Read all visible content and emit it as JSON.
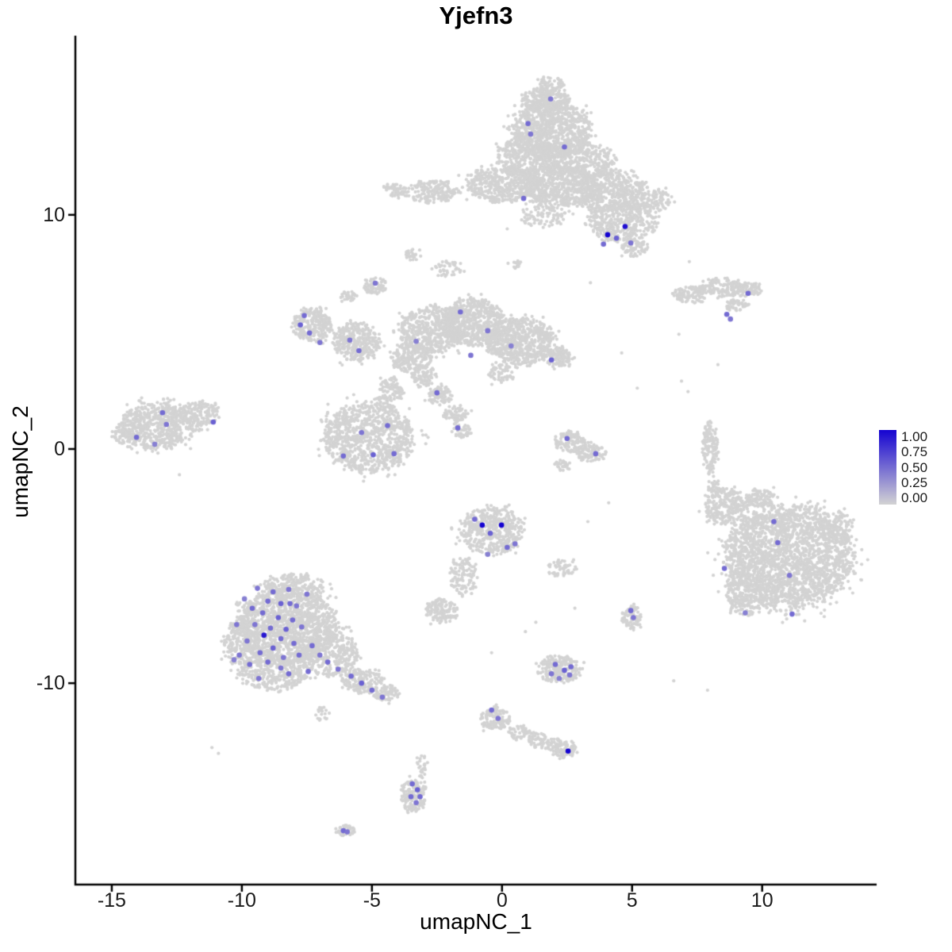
{
  "chart_data": {
    "type": "scatter",
    "title": "Yjefn3",
    "xlabel": "umapNC_1",
    "ylabel": "umapNC_2",
    "x_ticks": [
      -15,
      -10,
      -5,
      0,
      5,
      10
    ],
    "y_ticks": [
      -10,
      0,
      10
    ],
    "xlim": [
      -16.4,
      14.4
    ],
    "ylim": [
      -18.6,
      17.65
    ],
    "grid": false,
    "legend": {
      "position": "right",
      "labels": [
        "1.00",
        "0.75",
        "0.50",
        "0.25",
        "0.00"
      ],
      "min": 0,
      "max": 1
    },
    "colors": {
      "background_cell": "#d3d3d3",
      "expression_low": "#d3d3d3",
      "expression_high": "#1503d1",
      "axis": "#000000",
      "text": "#1a1a1a"
    },
    "background_clusters_format": "[center_x, center_y, radius_x, radius_y, n_cells]",
    "background_clusters": [
      [
        1.6,
        14.9,
        0.9,
        0.55,
        260
      ],
      [
        1.9,
        15.6,
        0.45,
        0.3,
        60
      ],
      [
        1.9,
        13.6,
        1.5,
        1.2,
        900
      ],
      [
        0.9,
        12.5,
        1.1,
        0.8,
        350
      ],
      [
        2.9,
        12.3,
        1.4,
        0.9,
        450
      ],
      [
        0.1,
        11.3,
        1.5,
        0.75,
        450
      ],
      [
        2.2,
        11.2,
        1.5,
        0.85,
        550
      ],
      [
        4.2,
        11.0,
        1.4,
        0.9,
        500
      ],
      [
        -2.7,
        11.0,
        1.0,
        0.5,
        180
      ],
      [
        -4.1,
        11.1,
        0.45,
        0.3,
        50
      ],
      [
        4.6,
        9.7,
        1.3,
        0.85,
        420
      ],
      [
        5.1,
        8.6,
        0.5,
        0.4,
        70
      ],
      [
        1.6,
        10.0,
        1.0,
        0.5,
        90
      ],
      [
        5.9,
        10.6,
        0.6,
        0.5,
        90
      ],
      [
        7.3,
        6.6,
        0.7,
        0.35,
        110
      ],
      [
        8.4,
        6.9,
        0.8,
        0.4,
        140
      ],
      [
        9.4,
        6.8,
        0.6,
        0.3,
        80
      ],
      [
        9.0,
        6.15,
        0.5,
        0.25,
        50
      ],
      [
        -3.4,
        8.3,
        0.3,
        0.25,
        30
      ],
      [
        -2.1,
        7.7,
        0.7,
        0.35,
        40
      ],
      [
        0.5,
        7.9,
        0.25,
        0.2,
        15
      ],
      [
        -7.3,
        5.3,
        0.75,
        0.7,
        260
      ],
      [
        -5.6,
        4.6,
        0.9,
        0.85,
        330
      ],
      [
        -4.9,
        7.0,
        0.45,
        0.35,
        70
      ],
      [
        -5.9,
        6.5,
        0.3,
        0.25,
        30
      ],
      [
        -2.7,
        5.1,
        1.2,
        1.0,
        520
      ],
      [
        -1.1,
        5.4,
        1.2,
        1.0,
        600
      ],
      [
        -3.5,
        3.9,
        0.8,
        0.6,
        200
      ],
      [
        0.7,
        4.6,
        1.3,
        1.0,
        650
      ],
      [
        2.1,
        3.9,
        0.6,
        0.4,
        110
      ],
      [
        -3.0,
        3.1,
        0.5,
        0.4,
        90
      ],
      [
        -2.4,
        2.3,
        0.5,
        0.4,
        80
      ],
      [
        -1.8,
        1.5,
        0.45,
        0.35,
        70
      ],
      [
        -1.5,
        0.8,
        0.35,
        0.3,
        45
      ],
      [
        -4.3,
        2.4,
        0.5,
        0.7,
        100
      ],
      [
        -5.1,
        0.5,
        1.7,
        1.5,
        950
      ],
      [
        0.0,
        3.2,
        0.5,
        0.4,
        60
      ],
      [
        -13.2,
        1.0,
        1.4,
        1.0,
        600
      ],
      [
        -11.6,
        1.5,
        0.7,
        0.55,
        150
      ],
      [
        -14.4,
        0.6,
        0.5,
        0.5,
        90
      ],
      [
        2.6,
        0.3,
        0.6,
        0.45,
        120
      ],
      [
        3.4,
        -0.15,
        0.6,
        0.4,
        100
      ],
      [
        2.3,
        -0.7,
        0.3,
        0.25,
        30
      ],
      [
        8.0,
        0.0,
        0.3,
        1.1,
        140
      ],
      [
        8.15,
        -1.6,
        0.25,
        0.3,
        30
      ],
      [
        11.0,
        -4.6,
        2.4,
        2.2,
        2300
      ],
      [
        8.6,
        -2.5,
        0.8,
        0.8,
        260
      ],
      [
        9.4,
        -6.2,
        0.8,
        0.9,
        220
      ],
      [
        9.9,
        -2.1,
        0.6,
        0.4,
        90
      ],
      [
        12.9,
        -3.4,
        0.6,
        0.7,
        120
      ],
      [
        -0.4,
        -3.5,
        1.2,
        1.0,
        480
      ],
      [
        -1.5,
        -5.4,
        0.5,
        0.8,
        120
      ],
      [
        -2.3,
        -6.9,
        0.6,
        0.5,
        130
      ],
      [
        2.3,
        -5.1,
        0.55,
        0.35,
        55
      ],
      [
        5.0,
        -7.2,
        0.4,
        0.5,
        80
      ],
      [
        2.2,
        -9.4,
        0.8,
        0.6,
        220
      ],
      [
        -8.3,
        -7.6,
        1.9,
        1.6,
        1500
      ],
      [
        -8.0,
        -5.9,
        1.2,
        0.55,
        230
      ],
      [
        -10.0,
        -8.3,
        0.7,
        1.0,
        200
      ],
      [
        -8.8,
        -9.6,
        1.3,
        0.75,
        330
      ],
      [
        -6.6,
        -8.8,
        1.1,
        0.9,
        330
      ],
      [
        -5.4,
        -9.9,
        0.8,
        0.5,
        170
      ],
      [
        -4.5,
        -10.4,
        0.5,
        0.35,
        80
      ],
      [
        -6.9,
        -11.3,
        0.25,
        0.3,
        20
      ],
      [
        -0.25,
        -11.5,
        0.55,
        0.5,
        120
      ],
      [
        0.6,
        -12.1,
        0.4,
        0.3,
        45
      ],
      [
        1.3,
        -12.4,
        0.4,
        0.3,
        45
      ],
      [
        1.9,
        -12.6,
        0.4,
        0.3,
        45
      ],
      [
        2.4,
        -12.85,
        0.45,
        0.35,
        90
      ],
      [
        -3.4,
        -14.8,
        0.5,
        0.7,
        150
      ],
      [
        -3.05,
        -13.6,
        0.22,
        0.5,
        28
      ],
      [
        -6.0,
        -16.3,
        0.35,
        0.25,
        50
      ]
    ],
    "background_singles": [
      [
        -10.9,
        -13.0
      ],
      [
        -11.15,
        -12.75
      ],
      [
        3.3,
        -3.1
      ],
      [
        4.1,
        -2.3
      ],
      [
        6.6,
        -9.9
      ],
      [
        7.9,
        -10.3
      ],
      [
        0.9,
        -7.8
      ],
      [
        1.3,
        -7.4
      ],
      [
        -0.4,
        -8.7
      ],
      [
        5.2,
        2.6
      ],
      [
        6.9,
        2.9
      ],
      [
        7.15,
        2.45
      ],
      [
        4.6,
        4.1
      ],
      [
        6.8,
        4.9
      ],
      [
        7.2,
        8.0
      ],
      [
        2.8,
        -6.8
      ],
      [
        8.3,
        3.6
      ],
      [
        -12.4,
        -1.1
      ],
      [
        0.2,
        9.4
      ],
      [
        3.4,
        7.1
      ]
    ],
    "expressing_cells_format": "[x, y, expression_0_to_1]",
    "expressing_cells": [
      [
        1.87,
        14.95,
        0.45
      ],
      [
        1.0,
        13.9,
        0.5
      ],
      [
        1.1,
        13.45,
        0.45
      ],
      [
        2.4,
        12.9,
        0.5
      ],
      [
        0.83,
        10.7,
        0.5
      ],
      [
        4.06,
        9.15,
        1.0
      ],
      [
        4.73,
        9.5,
        0.95
      ],
      [
        3.9,
        8.75,
        0.5
      ],
      [
        4.4,
        9.0,
        0.55
      ],
      [
        4.95,
        8.8,
        0.45
      ],
      [
        9.46,
        6.65,
        0.5
      ],
      [
        8.64,
        5.75,
        0.5
      ],
      [
        8.78,
        5.55,
        0.45
      ],
      [
        -7.6,
        5.7,
        0.5
      ],
      [
        -7.75,
        5.3,
        0.55
      ],
      [
        -7.4,
        4.95,
        0.5
      ],
      [
        -7.0,
        4.55,
        0.45
      ],
      [
        -5.5,
        4.2,
        0.5
      ],
      [
        -5.85,
        4.65,
        0.45
      ],
      [
        -4.87,
        7.08,
        0.45
      ],
      [
        -1.6,
        5.85,
        0.5
      ],
      [
        -0.55,
        5.05,
        0.45
      ],
      [
        -1.2,
        4.0,
        0.45
      ],
      [
        1.9,
        3.8,
        0.55
      ],
      [
        -2.5,
        2.4,
        0.5
      ],
      [
        -1.7,
        0.9,
        0.5
      ],
      [
        0.35,
        4.4,
        0.4
      ],
      [
        -3.3,
        4.6,
        0.4
      ],
      [
        -6.1,
        -0.3,
        0.5
      ],
      [
        -4.95,
        -0.25,
        0.55
      ],
      [
        -4.15,
        -0.2,
        0.5
      ],
      [
        -4.4,
        1.0,
        0.5
      ],
      [
        -5.4,
        0.7,
        0.45
      ],
      [
        -14.05,
        0.5,
        0.5
      ],
      [
        -13.05,
        1.55,
        0.5
      ],
      [
        -12.9,
        1.05,
        0.45
      ],
      [
        -13.35,
        0.2,
        0.4
      ],
      [
        -11.1,
        1.15,
        0.55
      ],
      [
        2.5,
        0.45,
        0.5
      ],
      [
        3.6,
        -0.2,
        0.5
      ],
      [
        10.45,
        -3.1,
        0.5
      ],
      [
        10.6,
        -4.0,
        0.5
      ],
      [
        8.55,
        -5.1,
        0.5
      ],
      [
        11.05,
        -5.4,
        0.45
      ],
      [
        9.35,
        -7.0,
        0.4
      ],
      [
        11.15,
        -7.05,
        0.5
      ],
      [
        -1.05,
        -3.0,
        0.5
      ],
      [
        -0.76,
        -3.25,
        1.0
      ],
      [
        -0.02,
        -3.25,
        1.0
      ],
      [
        -0.45,
        -3.6,
        0.55
      ],
      [
        0.2,
        -4.2,
        0.5
      ],
      [
        0.5,
        -4.05,
        0.45
      ],
      [
        -0.55,
        -4.5,
        0.4
      ],
      [
        4.95,
        -6.9,
        0.5
      ],
      [
        5.05,
        -7.2,
        0.45
      ],
      [
        2.05,
        -9.2,
        0.5
      ],
      [
        2.4,
        -9.45,
        0.55
      ],
      [
        2.6,
        -9.65,
        0.45
      ],
      [
        2.2,
        -9.8,
        0.4
      ],
      [
        2.65,
        -9.3,
        0.5
      ],
      [
        1.9,
        -9.6,
        0.45
      ],
      [
        -9.4,
        -5.95,
        0.45
      ],
      [
        -8.8,
        -6.1,
        0.5
      ],
      [
        -8.2,
        -6.0,
        0.45
      ],
      [
        -9.0,
        -6.5,
        0.5
      ],
      [
        -8.5,
        -6.6,
        0.55
      ],
      [
        -9.6,
        -6.8,
        0.5
      ],
      [
        -7.9,
        -6.7,
        0.45
      ],
      [
        -9.2,
        -7.0,
        0.5
      ],
      [
        -8.6,
        -7.2,
        0.55
      ],
      [
        -8.05,
        -7.3,
        0.5
      ],
      [
        -9.5,
        -7.5,
        0.45
      ],
      [
        -8.9,
        -7.65,
        0.5
      ],
      [
        -8.3,
        -7.7,
        0.55
      ],
      [
        -7.7,
        -7.6,
        0.45
      ],
      [
        -9.15,
        -7.95,
        0.9
      ],
      [
        -8.5,
        -8.1,
        0.5
      ],
      [
        -9.8,
        -8.2,
        0.45
      ],
      [
        -8.0,
        -8.3,
        0.5
      ],
      [
        -8.8,
        -8.5,
        0.55
      ],
      [
        -9.3,
        -8.7,
        0.5
      ],
      [
        -8.4,
        -8.9,
        0.45
      ],
      [
        -7.8,
        -8.8,
        0.5
      ],
      [
        -9.0,
        -9.1,
        0.5
      ],
      [
        -8.5,
        -9.35,
        0.45
      ],
      [
        -9.7,
        -9.2,
        0.5
      ],
      [
        -10.1,
        -8.8,
        0.45
      ],
      [
        -7.3,
        -8.4,
        0.5
      ],
      [
        -7.0,
        -8.8,
        0.45
      ],
      [
        -6.7,
        -9.1,
        0.5
      ],
      [
        -6.3,
        -9.4,
        0.45
      ],
      [
        -5.8,
        -9.7,
        0.5
      ],
      [
        -5.4,
        -10.0,
        0.55
      ],
      [
        -5.0,
        -10.3,
        0.5
      ],
      [
        -4.6,
        -10.6,
        0.45
      ],
      [
        -7.45,
        -9.5,
        0.5
      ],
      [
        -10.2,
        -7.5,
        0.45
      ],
      [
        -9.9,
        -6.4,
        0.4
      ],
      [
        -7.5,
        -6.2,
        0.45
      ],
      [
        -8.2,
        -9.6,
        0.5
      ],
      [
        -9.35,
        -9.8,
        0.45
      ],
      [
        -10.3,
        -9.0,
        0.4
      ],
      [
        -8.15,
        -6.6,
        0.5
      ],
      [
        -0.4,
        -11.15,
        0.5
      ],
      [
        -0.15,
        -11.5,
        0.45
      ],
      [
        2.54,
        -12.9,
        1.0
      ],
      [
        -3.45,
        -14.3,
        0.5
      ],
      [
        -3.25,
        -14.55,
        0.55
      ],
      [
        -3.5,
        -14.85,
        0.5
      ],
      [
        -3.3,
        -15.1,
        0.45
      ],
      [
        -3.15,
        -14.85,
        0.5
      ],
      [
        -6.1,
        -16.3,
        0.5
      ],
      [
        -5.95,
        -16.35,
        0.45
      ]
    ]
  }
}
